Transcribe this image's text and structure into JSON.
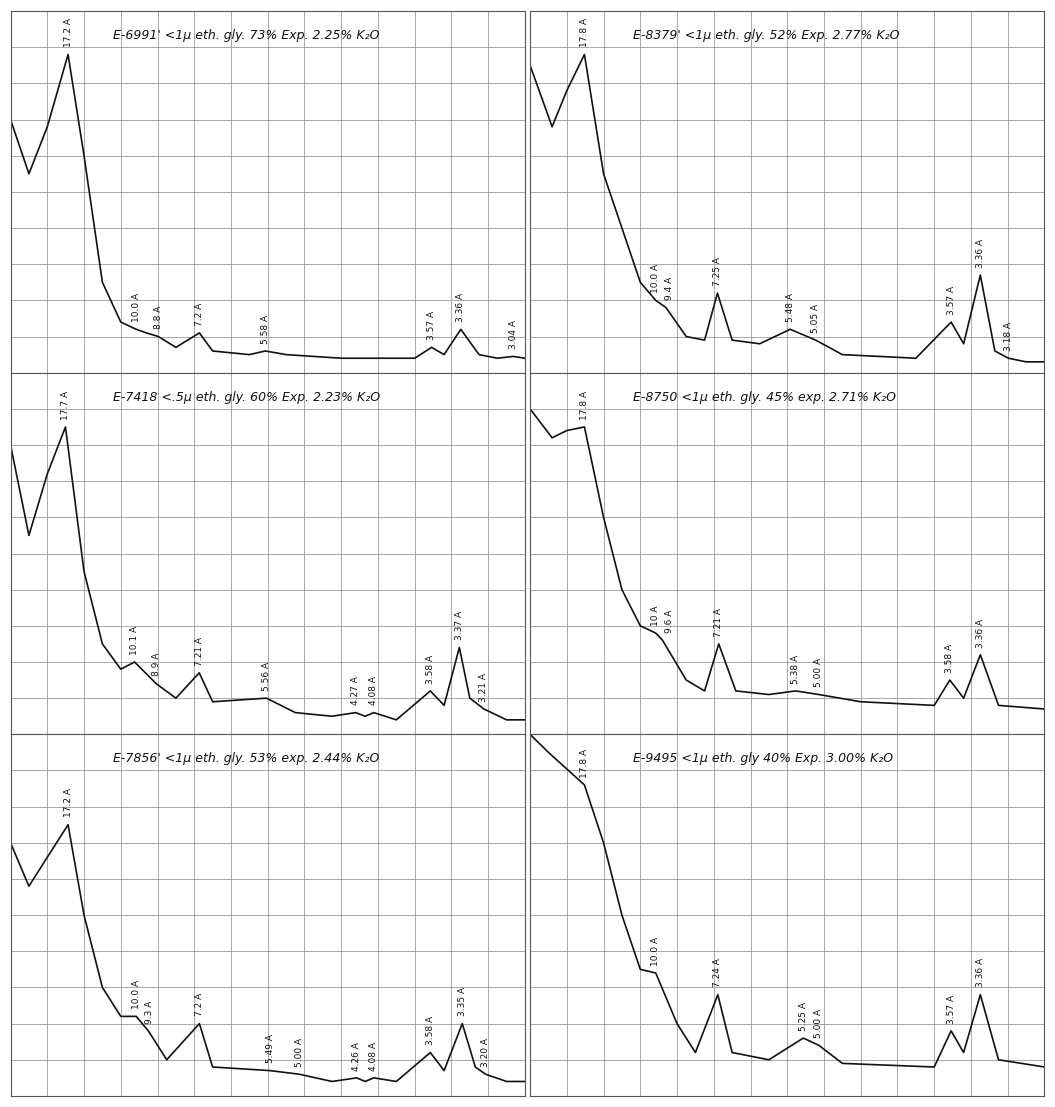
{
  "chart_data": [
    {
      "type": "line",
      "title": "E-6991' <1μ eth. gly. 73% Exp. 2.25% K₂O",
      "color": "#111111",
      "grid": true,
      "tick_labels": false,
      "xlim": [
        2,
        30
      ],
      "ylim": [
        0,
        100
      ],
      "xticks": [
        2,
        4,
        6,
        8,
        10,
        12,
        14,
        16,
        18,
        20,
        22,
        24,
        26,
        28,
        30
      ],
      "yticks": [
        0,
        10,
        20,
        30,
        40,
        50,
        60,
        70,
        80,
        90,
        100
      ],
      "x": [
        2,
        3,
        4,
        5.13,
        6,
        7,
        8,
        8.84,
        9.4,
        10.05,
        11,
        12.28,
        13,
        15,
        15.87,
        17,
        20,
        24,
        24.92,
        25.6,
        26.51,
        27.5,
        28.5,
        29.36,
        30
      ],
      "values": [
        70,
        55,
        68,
        88,
        60,
        25,
        14,
        12,
        11,
        10,
        7,
        11,
        6,
        5,
        6,
        5,
        4,
        4,
        7,
        5,
        12,
        5,
        4,
        4.5,
        4
      ],
      "annotations": [
        {
          "text": "17.2 A",
          "x": 5.13
        },
        {
          "text": "10.0 A",
          "x": 8.84
        },
        {
          "text": "8.8 A",
          "x": 10.05
        },
        {
          "text": "7.2 A",
          "x": 12.28
        },
        {
          "text": "5.58 A",
          "x": 15.87
        },
        {
          "text": "3.57 A",
          "x": 24.92
        },
        {
          "text": "3.36 A",
          "x": 26.51
        },
        {
          "text": "3.04 A",
          "x": 29.36
        }
      ]
    },
    {
      "type": "line",
      "title": "E-8379' <1μ eth. gly. 52% Exp. 2.77% K₂O",
      "color": "#111111",
      "grid": true,
      "tick_labels": false,
      "xlim": [
        2,
        30
      ],
      "ylim": [
        0,
        100
      ],
      "xticks": [
        2,
        4,
        6,
        8,
        10,
        12,
        14,
        16,
        18,
        20,
        22,
        24,
        26,
        28,
        30
      ],
      "yticks": [
        0,
        10,
        20,
        30,
        40,
        50,
        60,
        70,
        80,
        90,
        100
      ],
      "x": [
        2,
        3.2,
        4,
        4.96,
        6,
        7,
        8,
        8.84,
        9.4,
        10.5,
        11.5,
        12.2,
        13,
        14.5,
        16.16,
        17.55,
        19,
        23,
        24.92,
        25.6,
        26.51,
        27.3,
        28.04,
        29,
        30
      ],
      "values": [
        85,
        68,
        78,
        88,
        55,
        40,
        25,
        20,
        18,
        10,
        9,
        22,
        9,
        8,
        12,
        9,
        5,
        4,
        14,
        8,
        27,
        6,
        4,
        3,
        3
      ],
      "annotations": [
        {
          "text": "17.8 A",
          "x": 4.96
        },
        {
          "text": "10.0 A",
          "x": 8.84
        },
        {
          "text": "9.4 A",
          "x": 9.4
        },
        {
          "text": "7.25 A",
          "x": 12.2
        },
        {
          "text": "5.48 A",
          "x": 16.16
        },
        {
          "text": "5.05 A",
          "x": 17.55
        },
        {
          "text": "3.57 A",
          "x": 24.92
        },
        {
          "text": "3.36 A",
          "x": 26.51
        },
        {
          "text": "3.18 A",
          "x": 28.04
        }
      ]
    },
    {
      "type": "line",
      "title": "E-7418 <.5μ eth. gly. 60% Exp. 2.23% K₂O",
      "color": "#111111",
      "grid": true,
      "tick_labels": false,
      "xlim": [
        2,
        30
      ],
      "ylim": [
        0,
        100
      ],
      "xticks": [
        2,
        4,
        6,
        8,
        10,
        12,
        14,
        16,
        18,
        20,
        22,
        24,
        26,
        28,
        30
      ],
      "yticks": [
        0,
        10,
        20,
        30,
        40,
        50,
        60,
        70,
        80,
        90,
        100
      ],
      "x": [
        2,
        3,
        4,
        4.99,
        6,
        7,
        8,
        8.75,
        9.93,
        11,
        12.27,
        13,
        15.93,
        17.5,
        19.5,
        20.78,
        21.3,
        21.77,
        23,
        24.85,
        25.6,
        26.43,
        27,
        27.77,
        29,
        30
      ],
      "values": [
        80,
        55,
        72,
        85,
        45,
        25,
        18,
        20,
        14,
        10,
        17,
        9,
        10,
        6,
        5,
        6,
        5,
        6,
        4,
        12,
        8,
        24,
        10,
        7,
        4,
        4
      ],
      "annotations": [
        {
          "text": "17.7 A",
          "x": 4.99
        },
        {
          "text": "10.1 A",
          "x": 8.75
        },
        {
          "text": "8.9 A",
          "x": 9.93
        },
        {
          "text": "7.21 A",
          "x": 12.27
        },
        {
          "text": "5.56 A",
          "x": 15.93
        },
        {
          "text": "4.27 A",
          "x": 20.78
        },
        {
          "text": "4.08 A",
          "x": 21.77
        },
        {
          "text": "3.58 A",
          "x": 24.85
        },
        {
          "text": "3.37 A",
          "x": 26.43
        },
        {
          "text": "3.21 A",
          "x": 27.77
        }
      ]
    },
    {
      "type": "line",
      "title": "E-8750 <1μ eth. gly. 45% exp. 2.71% K₂O",
      "color": "#111111",
      "grid": true,
      "tick_labels": false,
      "xlim": [
        2,
        30
      ],
      "ylim": [
        0,
        100
      ],
      "xticks": [
        2,
        4,
        6,
        8,
        10,
        12,
        14,
        16,
        18,
        20,
        22,
        24,
        26,
        28,
        30
      ],
      "yticks": [
        0,
        10,
        20,
        30,
        40,
        50,
        60,
        70,
        80,
        90,
        100
      ],
      "x": [
        2,
        3.2,
        4,
        4.96,
        6,
        7,
        8,
        8.84,
        9.21,
        10.5,
        11.5,
        12.27,
        13.2,
        15,
        16.46,
        17.72,
        20,
        24,
        24.85,
        25.6,
        26.51,
        27.5,
        30
      ],
      "values": [
        90,
        82,
        84,
        85,
        60,
        40,
        30,
        28,
        26,
        15,
        12,
        25,
        12,
        11,
        12,
        11,
        9,
        8,
        15,
        10,
        22,
        8,
        7
      ],
      "annotations": [
        {
          "text": "17.8 A",
          "x": 4.96
        },
        {
          "text": "10 A",
          "x": 8.84
        },
        {
          "text": "9.6 A",
          "x": 9.21
        },
        {
          "text": "7.21 A",
          "x": 12.27
        },
        {
          "text": "5.38 A",
          "x": 16.46
        },
        {
          "text": "5.00 A",
          "x": 17.72
        },
        {
          "text": "3.58 A",
          "x": 24.85
        },
        {
          "text": "3.36 A",
          "x": 26.51
        }
      ]
    },
    {
      "type": "line",
      "title": "E-7856' <1μ eth. gly. 53% exp. 2.44% K₂O",
      "color": "#111111",
      "grid": true,
      "tick_labels": false,
      "xlim": [
        2,
        30
      ],
      "ylim": [
        0,
        100
      ],
      "xticks": [
        2,
        4,
        6,
        8,
        10,
        12,
        14,
        16,
        18,
        20,
        22,
        24,
        26,
        28,
        30
      ],
      "yticks": [
        0,
        10,
        20,
        30,
        40,
        50,
        60,
        70,
        80,
        90,
        100
      ],
      "x": [
        2,
        3,
        4,
        5.13,
        6,
        7,
        8,
        8.84,
        9.5,
        10.5,
        12.28,
        13,
        16.13,
        17.72,
        19.5,
        20.84,
        21.3,
        21.77,
        23,
        24.85,
        25.6,
        26.59,
        27.3,
        27.86,
        29,
        30
      ],
      "values": [
        70,
        58,
        66,
        75,
        50,
        30,
        22,
        22,
        18,
        10,
        20,
        8,
        7,
        6,
        4,
        5,
        4,
        5,
        4,
        12,
        7,
        20,
        8,
        6,
        4,
        4
      ],
      "annotations": [
        {
          "text": "17.2 A",
          "x": 5.13
        },
        {
          "text": "10.0 A",
          "x": 8.84
        },
        {
          "text": "9.3 A",
          "x": 9.5
        },
        {
          "text": "7.2 A",
          "x": 12.28
        },
        {
          "text": "5.49 A",
          "x": 16.13
        },
        {
          "text": "5.00 A",
          "x": 17.72
        },
        {
          "text": "4.26 A",
          "x": 20.84
        },
        {
          "text": "4.08 A",
          "x": 21.77
        },
        {
          "text": "3.58 A",
          "x": 24.85
        },
        {
          "text": "3.35 A",
          "x": 26.59
        },
        {
          "text": "3.20 A",
          "x": 27.86
        }
      ]
    },
    {
      "type": "line",
      "title": "E-9495 <1μ eth. gly 40% Exp. 3.00% K₂O",
      "color": "#111111",
      "grid": true,
      "tick_labels": false,
      "xlim": [
        2,
        30
      ],
      "ylim": [
        0,
        100
      ],
      "xticks": [
        2,
        4,
        6,
        8,
        10,
        12,
        14,
        16,
        18,
        20,
        22,
        24,
        26,
        28,
        30
      ],
      "yticks": [
        0,
        10,
        20,
        30,
        40,
        50,
        60,
        70,
        80,
        90,
        100
      ],
      "x": [
        2,
        3,
        4.96,
        6,
        7,
        8,
        8.84,
        10,
        11,
        12.22,
        13,
        15,
        16.87,
        17.72,
        19,
        24,
        24.92,
        25.6,
        26.51,
        27.5,
        30
      ],
      "values": [
        100,
        95,
        86,
        70,
        50,
        35,
        34,
        20,
        12,
        28,
        12,
        10,
        16,
        14,
        9,
        8,
        18,
        12,
        28,
        10,
        8
      ],
      "annotations": [
        {
          "text": "17.8 A",
          "x": 4.96
        },
        {
          "text": "10.0 A",
          "x": 8.84
        },
        {
          "text": "7.24 A",
          "x": 12.22
        },
        {
          "text": "5.25 A",
          "x": 16.87
        },
        {
          "text": "5.00 A",
          "x": 17.72
        },
        {
          "text": "3.57 A",
          "x": 24.92
        },
        {
          "text": "3.36 A",
          "x": 26.51
        }
      ]
    }
  ]
}
